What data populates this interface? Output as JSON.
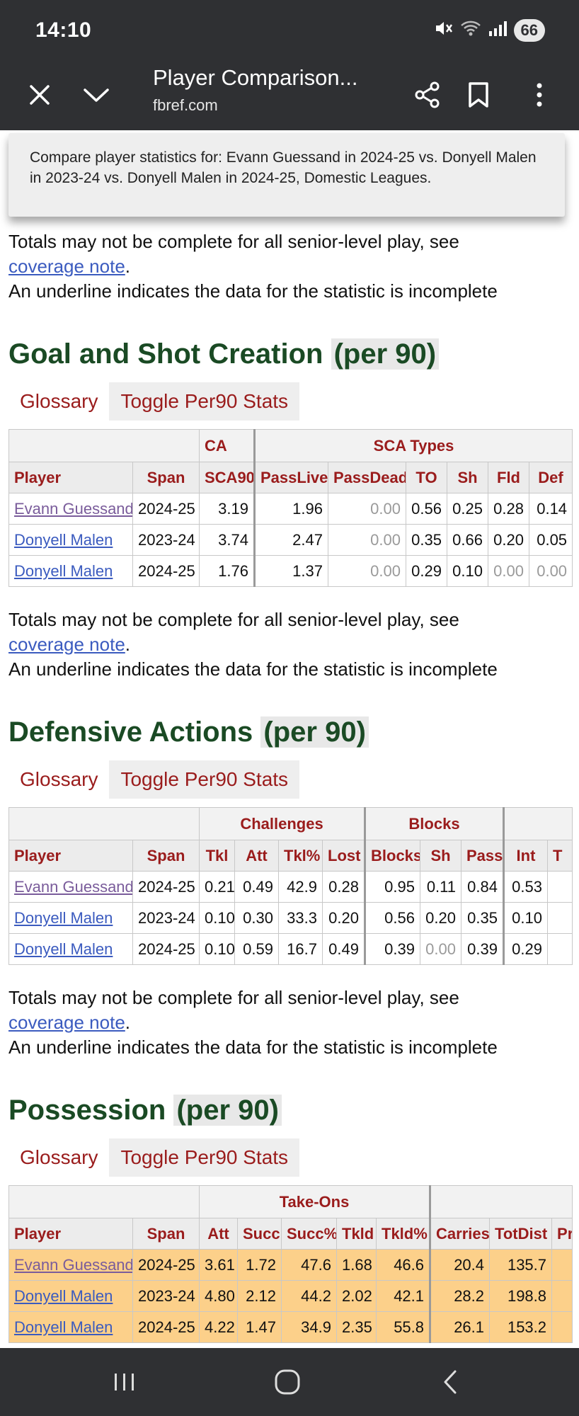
{
  "status": {
    "time": "14:10",
    "battery": "66"
  },
  "browser": {
    "title": "Player Comparison...",
    "domain": "fbref.com"
  },
  "tooltip": {
    "text": "Compare player statistics for: Evann Guessand in 2024-25 vs. Donyell Malen in 2023-24 vs. Donyell Malen in 2024-25, Domestic Leagues."
  },
  "note": {
    "line1": "Totals may not be complete for all senior-level play, see",
    "link": "coverage note",
    "period": ".",
    "line2": "An underline indicates the data for the statistic is incomplete"
  },
  "tabs": {
    "glossary": "Glossary",
    "toggle": "Toggle Per90 Stats"
  },
  "gsc": {
    "title": "Goal and Shot Creation",
    "per90": "(per 90)",
    "groups": {
      "sca": "CA",
      "types": "SCA Types"
    },
    "headers": [
      "Player",
      "Span",
      "SCA90",
      "PassLive",
      "PassDead",
      "TO",
      "Sh",
      "Fld",
      "Def"
    ],
    "rows": [
      [
        "Evann Guessand",
        "2024-25",
        "3.19",
        "1.96",
        "0.00",
        "0.56",
        "0.25",
        "0.28",
        "0.14"
      ],
      [
        "Donyell Malen",
        "2023-24",
        "3.74",
        "2.47",
        "0.00",
        "0.35",
        "0.66",
        "0.20",
        "0.05"
      ],
      [
        "Donyell Malen",
        "2024-25",
        "1.76",
        "1.37",
        "0.00",
        "0.29",
        "0.10",
        "0.00",
        "0.00"
      ]
    ]
  },
  "def": {
    "title": "Defensive Actions",
    "per90": "(per 90)",
    "groups": {
      "challenges": "Challenges",
      "blocks": "Blocks"
    },
    "headers": [
      "Player",
      "Span",
      "Tkl",
      "Att",
      "Tkl%",
      "Lost",
      "Blocks",
      "Sh",
      "Pass",
      "Int",
      "T"
    ],
    "rows": [
      [
        "Evann Guessand",
        "2024-25",
        "0.21",
        "0.49",
        "42.9",
        "0.28",
        "0.95",
        "0.11",
        "0.84",
        "0.53",
        ""
      ],
      [
        "Donyell Malen",
        "2023-24",
        "0.10",
        "0.30",
        "33.3",
        "0.20",
        "0.56",
        "0.20",
        "0.35",
        "0.10",
        ""
      ],
      [
        "Donyell Malen",
        "2024-25",
        "0.10",
        "0.59",
        "16.7",
        "0.49",
        "0.39",
        "0.00",
        "0.39",
        "0.29",
        ""
      ]
    ]
  },
  "pos": {
    "title": "Possession",
    "per90": "(per 90)",
    "groups": {
      "takeons": "Take-Ons"
    },
    "headers": [
      "Player",
      "Span",
      "Att",
      "Succ",
      "Succ%",
      "Tkld",
      "Tkld%",
      "Carries",
      "TotDist",
      "Pr"
    ],
    "rows": [
      [
        "Evann Guessand",
        "2024-25",
        "3.61",
        "1.72",
        "47.6",
        "1.68",
        "46.6",
        "20.4",
        "135.7",
        ""
      ],
      [
        "Donyell Malen",
        "2023-24",
        "4.80",
        "2.12",
        "44.2",
        "2.02",
        "42.1",
        "28.2",
        "198.8",
        ""
      ],
      [
        "Donyell Malen",
        "2024-25",
        "4.22",
        "1.47",
        "34.9",
        "2.35",
        "55.8",
        "26.1",
        "153.2",
        ""
      ]
    ]
  },
  "icons": [
    "mute-icon",
    "wifi-icon",
    "signal-icon",
    "close-icon",
    "chevron-down-icon",
    "share-icon",
    "bookmark-icon",
    "more-icon",
    "recents-icon",
    "home-icon",
    "back-icon"
  ],
  "colors": {
    "bar": "#2f3033",
    "heading": "#1a4a24",
    "tab": "#9a1c1c",
    "link": "#3b5bbf",
    "highlight": "#fcd08a"
  }
}
